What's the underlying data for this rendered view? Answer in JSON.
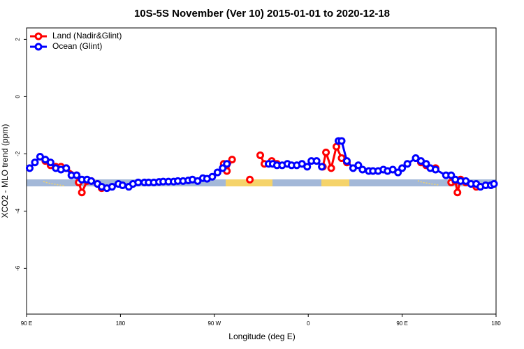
{
  "chart_data": {
    "type": "line",
    "title": "10S-5S November (Ver 10)   2015-01-01 to 2020-12-18",
    "xlabel": "Longitude (deg E)",
    "ylabel": "XCO2 - MLO trend (ppm)",
    "xlim": [
      90,
      540
    ],
    "ylim": [
      -7.6,
      2.4
    ],
    "xticks": [
      {
        "value": 90,
        "label": "90 E"
      },
      {
        "value": 180,
        "label": "180"
      },
      {
        "value": 270,
        "label": "90 W"
      },
      {
        "value": 360,
        "label": "0"
      },
      {
        "value": 450,
        "label": "90 E"
      },
      {
        "value": 540,
        "label": "180"
      }
    ],
    "yticks": [
      2,
      0,
      -2,
      -4,
      -6
    ],
    "legend": "top-left",
    "series": [
      {
        "name": "Land (Nadir&Glint)",
        "color": "#ff0000",
        "x": [
          108,
          113,
          118,
          123,
          128,
          138,
          140,
          143,
          148,
          152,
          158,
          162,
          170,
          279,
          282,
          287,
          290,
          304,
          310,
          314,
          318,
          325,
          330,
          340,
          374,
          377,
          382,
          387,
          392,
          397,
          420,
          468,
          473,
          482,
          490,
          497,
          501,
          503,
          506,
          511,
          521
        ],
        "values": [
          -2.25,
          -2.4,
          -2.45,
          -2.45,
          -2.5,
          -2.75,
          -3.0,
          -3.35,
          -2.95,
          -2.95,
          -3.05,
          -3.2,
          null,
          -2.35,
          -2.6,
          -2.2,
          null,
          -2.9,
          null,
          -2.05,
          -2.35,
          -2.25,
          -2.35,
          null,
          -2.45,
          -1.95,
          -2.5,
          -1.75,
          -2.15,
          -2.3,
          null,
          -2.3,
          -2.4,
          -2.5,
          null,
          -3.0,
          -2.95,
          -3.35,
          -2.9,
          -3.0,
          -3.15
        ]
      },
      {
        "name": "Ocean (Glint)",
        "color": "#0000ff",
        "x": [
          93,
          98,
          103,
          108,
          113,
          118,
          123,
          128,
          133,
          138,
          143,
          148,
          152,
          158,
          162,
          167,
          172,
          178,
          182,
          188,
          192,
          197,
          203,
          207,
          212,
          217,
          221,
          226,
          231,
          235,
          240,
          245,
          249,
          254,
          259,
          263,
          268,
          273,
          278,
          282,
          300,
          322,
          326,
          330,
          335,
          340,
          344,
          349,
          354,
          359,
          363,
          368,
          373,
          380,
          389,
          392,
          397,
          403,
          408,
          412,
          418,
          422,
          427,
          432,
          436,
          441,
          446,
          450,
          455,
          463,
          468,
          473,
          477,
          482,
          492,
          497,
          501,
          506,
          511,
          516,
          521,
          525,
          530,
          535,
          538
        ],
        "values": [
          -2.5,
          -2.3,
          -2.1,
          -2.2,
          -2.3,
          -2.5,
          -2.55,
          -2.5,
          -2.75,
          -2.75,
          -2.9,
          -2.9,
          -2.95,
          -3.05,
          -3.15,
          -3.2,
          -3.15,
          -3.05,
          -3.1,
          -3.15,
          -3.05,
          -3.0,
          -3.0,
          -3.0,
          -3.0,
          -2.98,
          -2.97,
          -2.97,
          -2.97,
          -2.95,
          -2.95,
          -2.93,
          -2.9,
          -2.95,
          -2.85,
          -2.87,
          -2.8,
          -2.65,
          -2.5,
          -2.35,
          null,
          -2.35,
          -2.35,
          -2.4,
          -2.4,
          -2.35,
          -2.4,
          -2.4,
          -2.35,
          -2.45,
          -2.25,
          -2.25,
          -2.45,
          null,
          -1.55,
          -1.55,
          -2.25,
          -2.5,
          -2.4,
          -2.55,
          -2.6,
          -2.6,
          -2.6,
          -2.55,
          -2.6,
          -2.55,
          -2.65,
          -2.5,
          -2.35,
          -2.15,
          -2.25,
          -2.35,
          -2.5,
          -2.55,
          -2.75,
          -2.75,
          -2.9,
          -2.95,
          -2.95,
          -3.05,
          -3.05,
          -3.15,
          -3.1,
          -3.1,
          -3.05
        ]
      }
    ]
  }
}
